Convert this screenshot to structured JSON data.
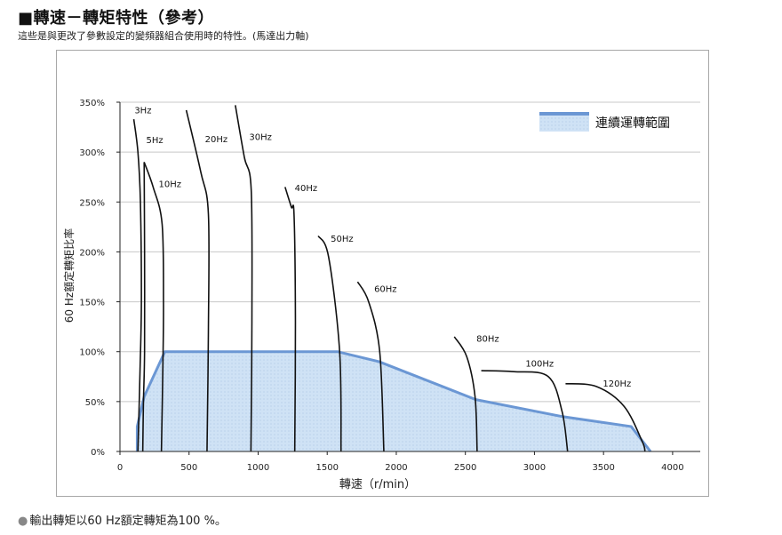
{
  "header": {
    "title": "■轉速－轉矩特性（參考）",
    "subtitle": "這些是與更改了參數設定的變頻器組合使用時的特性。(馬達出力軸)"
  },
  "footer": {
    "bullet": "●",
    "note": "輸出轉矩以60 Hz額定轉矩為100 %。"
  },
  "colors": {
    "band_fill": "#cfe2f5",
    "band_edge": "#6b97d4",
    "curve": "#111111",
    "grid": "#c8c8c8"
  },
  "chart_data": {
    "type": "line",
    "xlabel": "轉速（r/min）",
    "ylabel": "60 Hz額定轉矩比率",
    "xlim": [
      0,
      4200
    ],
    "ylim": [
      0,
      350
    ],
    "x_ticks": [
      0,
      500,
      1000,
      1500,
      2000,
      2500,
      3000,
      3500,
      4000
    ],
    "y_ticks": [
      0,
      50,
      100,
      150,
      200,
      250,
      300,
      350
    ],
    "x_tick_labels": [
      "0",
      "500",
      "1000",
      "1500",
      "2000",
      "2500",
      "3000",
      "3500",
      "4000"
    ],
    "y_tick_labels": [
      "0%",
      "50%",
      "100%",
      "150%",
      "200%",
      "250%",
      "300%",
      "350%"
    ],
    "grid": "horizontal",
    "legend": {
      "position": "top-right",
      "label": "連續運轉範圍"
    },
    "continuous_range": [
      [
        125,
        0
      ],
      [
        125,
        25
      ],
      [
        175,
        55
      ],
      [
        325,
        100
      ],
      [
        1575,
        100
      ],
      [
        1875,
        90
      ],
      [
        2575,
        52
      ],
      [
        3200,
        35
      ],
      [
        3700,
        25
      ],
      [
        3840,
        0
      ]
    ],
    "series": [
      {
        "name": "3Hz",
        "points": [
          [
            100,
            333
          ],
          [
            130,
            300
          ],
          [
            148,
            250
          ],
          [
            155,
            150
          ],
          [
            145,
            80
          ],
          [
            130,
            0
          ]
        ]
      },
      {
        "name": "5Hz",
        "points": [
          [
            175,
            290
          ],
          [
            178,
            200
          ],
          [
            178,
            100
          ],
          [
            170,
            50
          ],
          [
            165,
            0
          ]
        ]
      },
      {
        "name": "10Hz",
        "points": [
          [
            175,
            290
          ],
          [
            240,
            265
          ],
          [
            305,
            228
          ],
          [
            315,
            150
          ],
          [
            310,
            80
          ],
          [
            300,
            0
          ]
        ]
      },
      {
        "name": "20Hz",
        "points": [
          [
            480,
            342
          ],
          [
            585,
            280
          ],
          [
            640,
            238
          ],
          [
            640,
            120
          ],
          [
            630,
            0
          ]
        ]
      },
      {
        "name": "30Hz",
        "points": [
          [
            835,
            347
          ],
          [
            900,
            295
          ],
          [
            950,
            262
          ],
          [
            955,
            130
          ],
          [
            948,
            0
          ]
        ]
      },
      {
        "name": "40Hz",
        "points": [
          [
            1195,
            265
          ],
          [
            1240,
            245
          ],
          [
            1260,
            237
          ],
          [
            1270,
            130
          ],
          [
            1265,
            0
          ]
        ]
      },
      {
        "name": "50Hz",
        "points": [
          [
            1435,
            216
          ],
          [
            1510,
            195
          ],
          [
            1590,
            100
          ],
          [
            1600,
            0
          ]
        ]
      },
      {
        "name": "60Hz",
        "points": [
          [
            1720,
            170
          ],
          [
            1800,
            150
          ],
          [
            1880,
            100
          ],
          [
            1910,
            0
          ]
        ]
      },
      {
        "name": "80Hz",
        "points": [
          [
            2420,
            115
          ],
          [
            2510,
            95
          ],
          [
            2570,
            55
          ],
          [
            2585,
            0
          ]
        ]
      },
      {
        "name": "100Hz",
        "points": [
          [
            2615,
            81
          ],
          [
            2850,
            80
          ],
          [
            3100,
            75
          ],
          [
            3200,
            40
          ],
          [
            3240,
            0
          ]
        ]
      },
      {
        "name": "120Hz",
        "points": [
          [
            3225,
            68
          ],
          [
            3450,
            65
          ],
          [
            3650,
            45
          ],
          [
            3780,
            10
          ],
          [
            3800,
            0
          ]
        ]
      }
    ],
    "curve_labels": [
      {
        "text": "3Hz",
        "x": 105,
        "y": 339
      },
      {
        "text": "5Hz",
        "x": 190,
        "y": 309
      },
      {
        "text": "10Hz",
        "x": 280,
        "y": 265
      },
      {
        "text": "20Hz",
        "x": 615,
        "y": 310
      },
      {
        "text": "30Hz",
        "x": 935,
        "y": 312
      },
      {
        "text": "40Hz",
        "x": 1265,
        "y": 261
      },
      {
        "text": "50Hz",
        "x": 1525,
        "y": 210
      },
      {
        "text": "60Hz",
        "x": 1840,
        "y": 160
      },
      {
        "text": "80Hz",
        "x": 2580,
        "y": 110
      },
      {
        "text": "100Hz",
        "x": 2935,
        "y": 85
      },
      {
        "text": "120Hz",
        "x": 3495,
        "y": 65
      }
    ]
  }
}
